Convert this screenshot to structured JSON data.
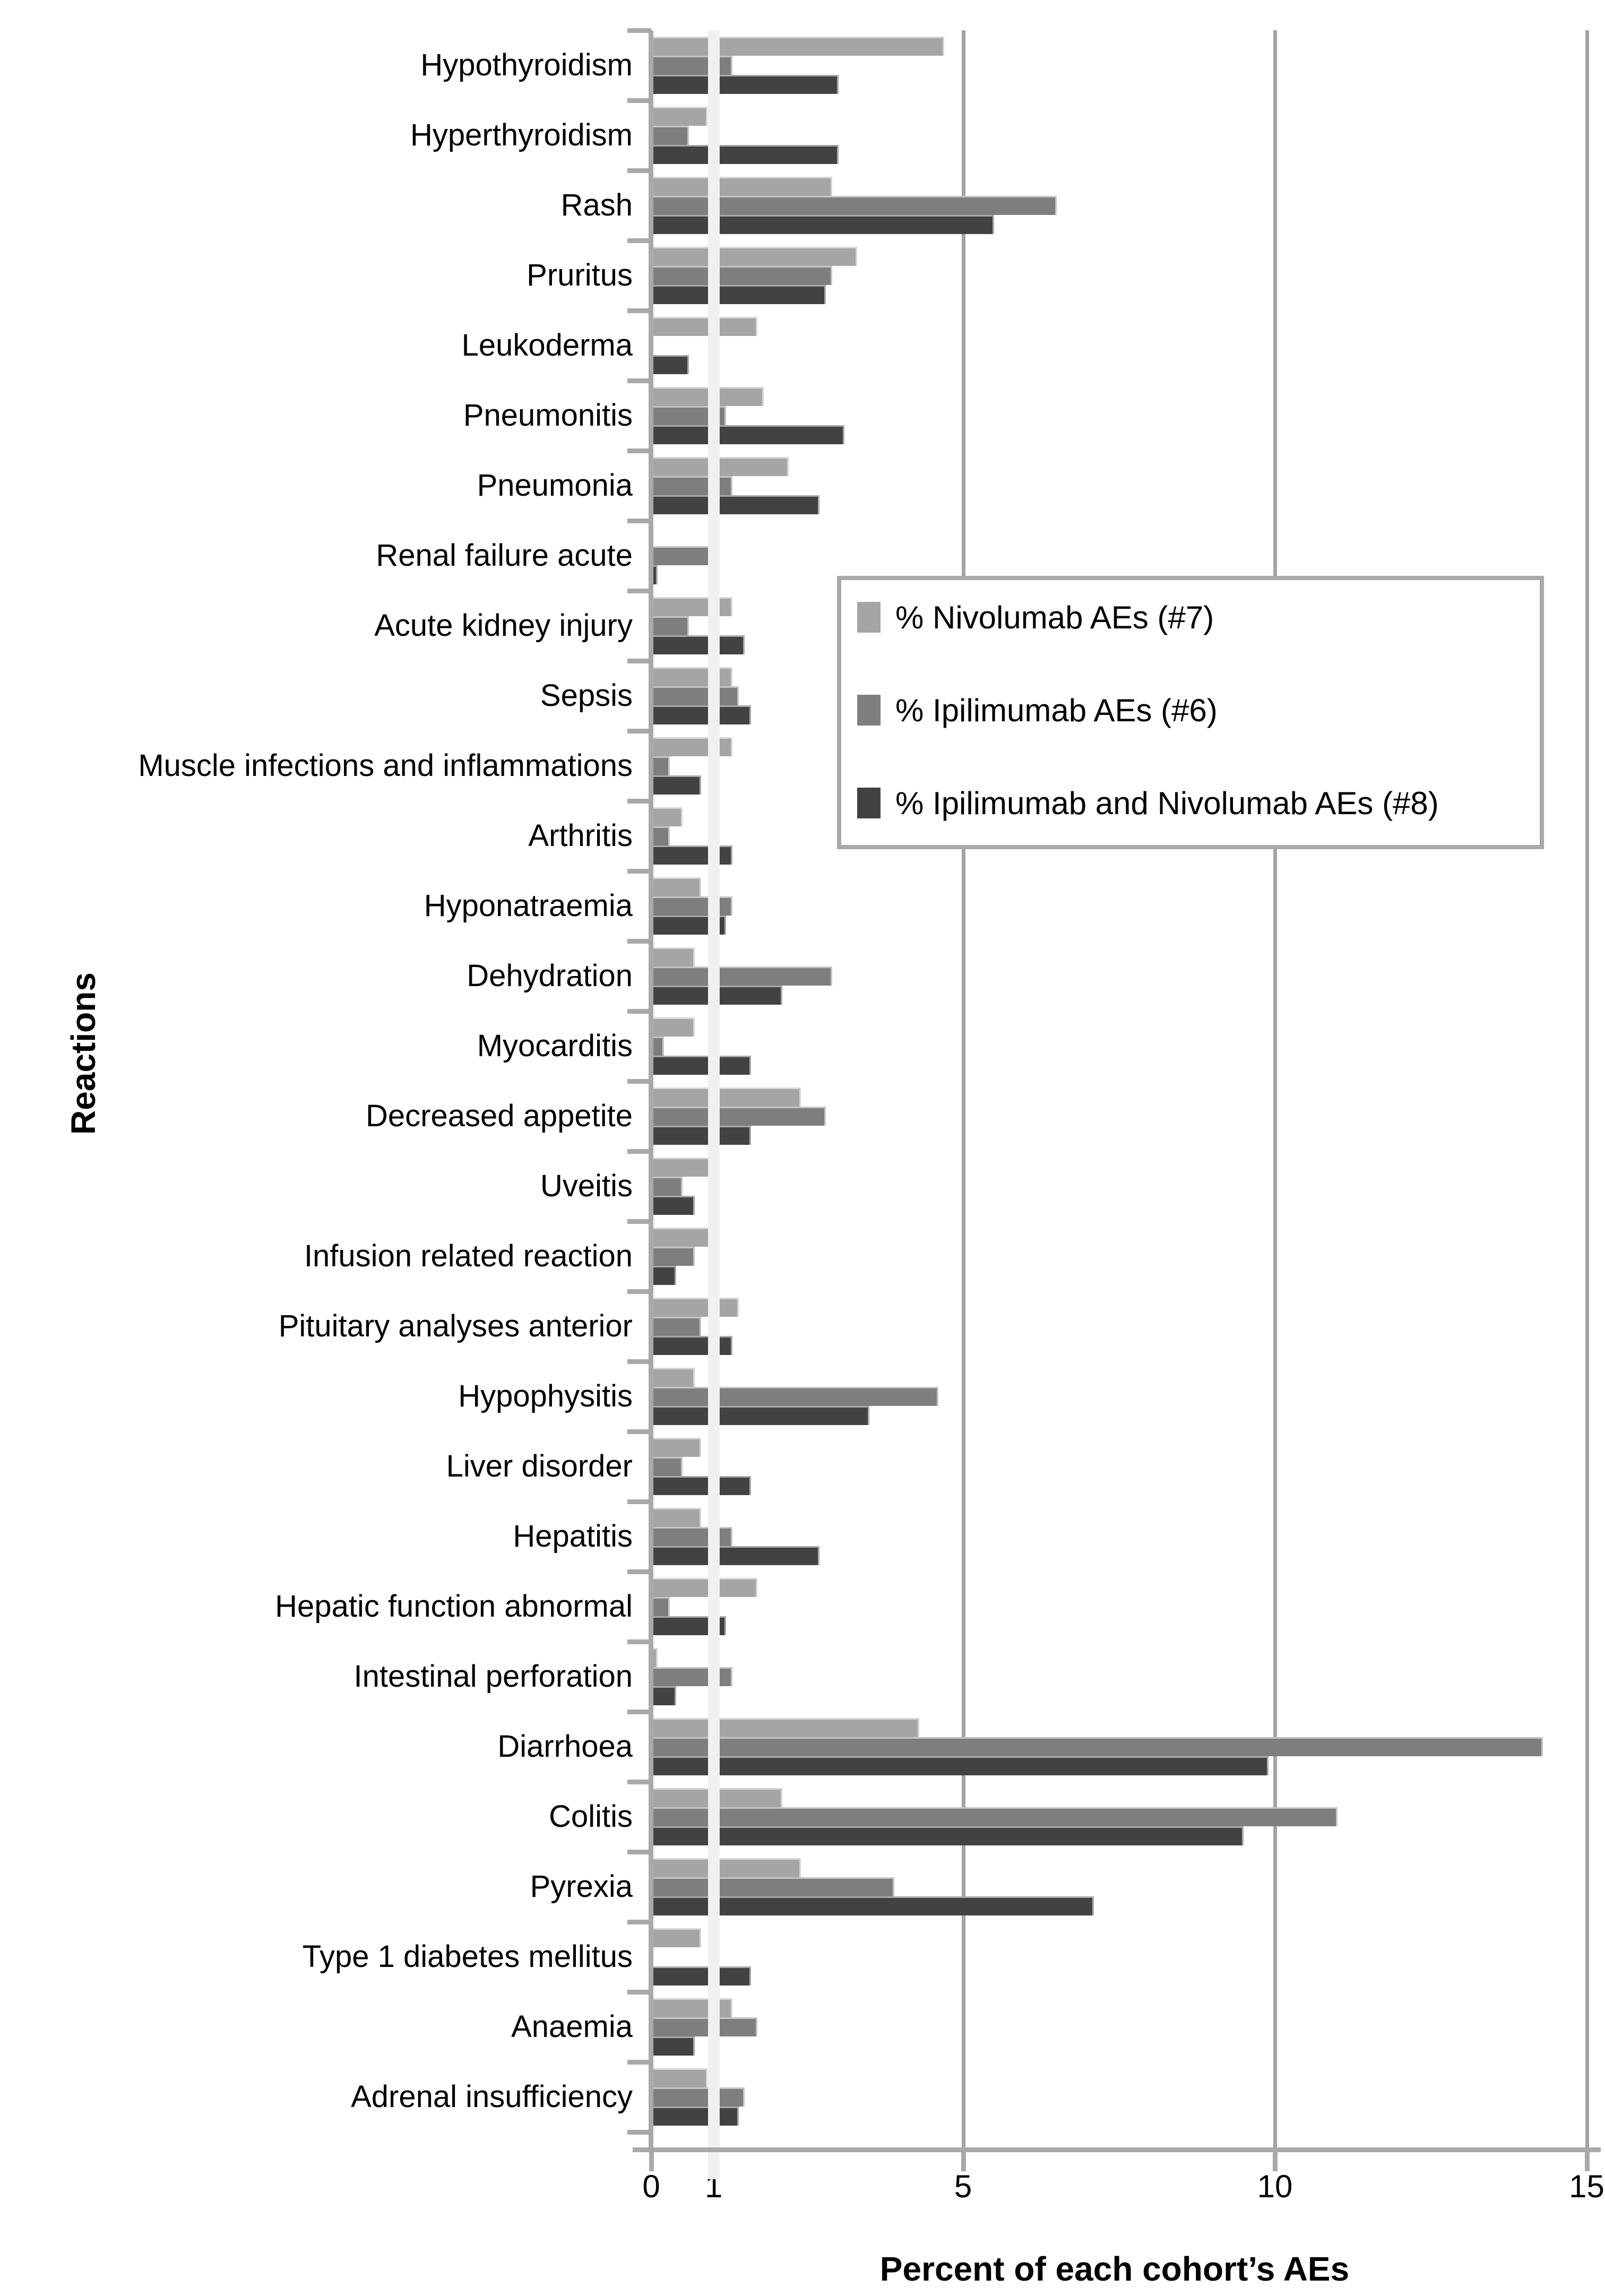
{
  "chart_data": {
    "type": "bar",
    "orientation": "horizontal",
    "title": "",
    "xlabel": "Percent of each cohort’s AEs",
    "ylabel": "Reactions",
    "xlim": [
      0,
      15
    ],
    "x_ticks": [
      0,
      1,
      5,
      10,
      15
    ],
    "gridlines_at": [
      5,
      10,
      15
    ],
    "reference_line_at": 1,
    "grid": "vertical-only",
    "legend_position": "inside-top-right",
    "background_color": "#ffffff",
    "axis_color": "#a9a9a9",
    "gridline_color": "#a3a3a3",
    "reference_line_color": "#f0f0f0",
    "categories": [
      "Hypothyroidism",
      "Hyperthyroidism",
      "Rash",
      "Pruritus",
      "Leukoderma",
      "Pneumonitis",
      "Pneumonia",
      "Renal failure acute",
      "Acute kidney injury",
      "Sepsis",
      "Muscle infections and inflammations",
      "Arthritis",
      "Hyponatraemia",
      "Dehydration",
      "Myocarditis",
      "Decreased appetite",
      "Uveitis",
      "Infusion related reaction",
      "Pituitary analyses anterior",
      "Hypophysitis",
      "Liver disorder",
      "Hepatitis",
      "Hepatic function abnormal",
      "Intestinal perforation",
      "Diarrhoea",
      "Colitis",
      "Pyrexia",
      "Type 1 diabetes mellitus",
      "Anaemia",
      "Adrenal insufficiency"
    ],
    "series": [
      {
        "name": "% Nivolumab AEs (#7)",
        "color": "#a5a5a5",
        "values": [
          4.7,
          0.9,
          2.9,
          3.3,
          1.7,
          1.8,
          2.2,
          0,
          1.3,
          1.3,
          1.3,
          0.5,
          0.8,
          0.7,
          0.7,
          2.4,
          1.1,
          1.1,
          1.4,
          0.7,
          0.8,
          0.8,
          1.7,
          0.1,
          4.3,
          2.1,
          2.4,
          0.8,
          1.3,
          0.9
        ]
      },
      {
        "name": "% Ipilimumab AEs (#6)",
        "color": "#7e7e7e",
        "values": [
          1.3,
          0.6,
          6.5,
          2.9,
          0,
          1.2,
          1.3,
          1.1,
          0.6,
          1.4,
          0.3,
          0.3,
          1.3,
          2.9,
          0.2,
          2.8,
          0.5,
          0.7,
          0.8,
          4.6,
          0.5,
          1.3,
          0.3,
          1.3,
          14.3,
          11.0,
          3.9,
          0,
          1.7,
          1.5
        ]
      },
      {
        "name": "% Ipilimumab and Nivolumab AEs (#8)",
        "color": "#424242",
        "values": [
          3.0,
          3.0,
          5.5,
          2.8,
          0.6,
          3.1,
          2.7,
          0.1,
          1.5,
          1.6,
          0.8,
          1.3,
          1.2,
          2.1,
          1.6,
          1.6,
          0.7,
          0.4,
          1.3,
          3.5,
          1.6,
          2.7,
          1.2,
          0.4,
          9.9,
          9.5,
          7.1,
          1.6,
          0.7,
          1.4
        ]
      }
    ],
    "legend": {
      "items": [
        {
          "label": "% Nivolumab AEs (#7)"
        },
        {
          "label": "% Ipilimumab AEs (#6)"
        },
        {
          "label": "% Ipilimumab and Nivolumab AEs (#8)"
        }
      ]
    }
  }
}
